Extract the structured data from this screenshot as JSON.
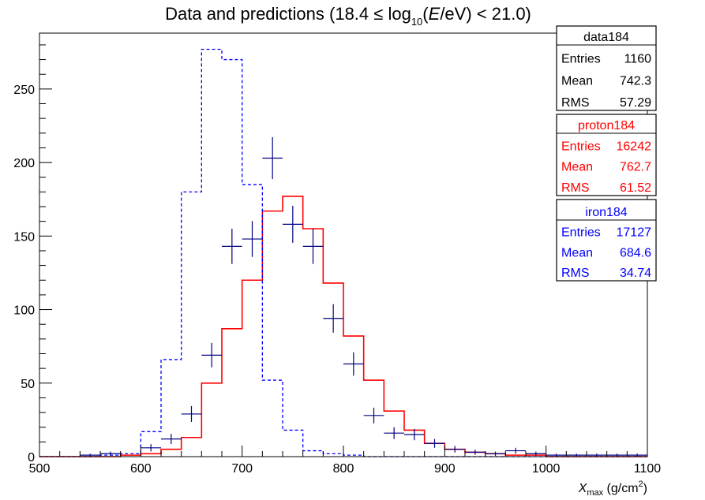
{
  "chart_data": {
    "type": "histogram",
    "title": {
      "prefix": "Data and predictions (18.4 ≤ log",
      "sub": "10",
      "mid": "(",
      "italic": "E",
      "suffix": "/eV) < 21.0)"
    },
    "xlabel": {
      "italic": "X",
      "sub": "max",
      "unit": " (g/cm",
      "sup": "2",
      "close": ")"
    },
    "ylabel": "",
    "xlim": [
      500,
      1100
    ],
    "ylim": [
      0,
      288
    ],
    "x_ticks": [
      500,
      600,
      700,
      800,
      900,
      1000,
      1100
    ],
    "y_ticks": [
      0,
      50,
      100,
      150,
      200,
      250
    ],
    "bin_edges": [
      500,
      520,
      540,
      560,
      580,
      600,
      620,
      640,
      660,
      680,
      700,
      720,
      740,
      760,
      780,
      800,
      820,
      840,
      860,
      880,
      900,
      920,
      940,
      960,
      980,
      1000,
      1020,
      1040,
      1060,
      1080,
      1100
    ],
    "series": [
      {
        "name": "proton184",
        "style": "solid-histogram",
        "color": "#ff0000",
        "values": [
          0,
          0,
          0,
          0,
          1,
          2,
          5,
          13,
          50,
          87,
          120,
          167,
          177,
          155,
          118,
          82,
          52,
          31,
          18,
          9,
          5,
          3,
          2,
          1,
          1,
          0,
          0,
          0,
          0,
          0
        ],
        "stats": {
          "Entries": "16242",
          "Mean": "762.7",
          "RMS": "61.52"
        }
      },
      {
        "name": "iron184",
        "style": "dashed-histogram",
        "color": "#0000ff",
        "values": [
          0,
          0,
          0,
          1,
          2,
          17,
          66,
          180,
          277,
          270,
          185,
          52,
          18,
          4,
          2,
          1,
          0,
          0,
          0,
          0,
          0,
          0,
          0,
          0,
          0,
          0,
          0,
          0,
          0,
          0
        ],
        "stats": {
          "Entries": "17127",
          "Mean": "684.6",
          "RMS": "34.74"
        }
      },
      {
        "name": "data184",
        "style": "points-with-errors",
        "color": "#000080",
        "x": [
          550,
          570,
          610,
          630,
          650,
          670,
          690,
          710,
          730,
          750,
          770,
          790,
          810,
          830,
          850,
          870,
          890,
          910,
          930,
          950,
          970,
          990,
          1010,
          1030,
          1050,
          1070,
          1090
        ],
        "values": [
          1,
          2,
          6,
          12,
          29,
          69,
          143,
          148,
          203,
          158,
          143,
          94,
          63,
          28,
          16,
          15,
          9,
          5,
          3,
          2,
          4,
          2,
          1,
          1,
          1,
          1,
          1
        ],
        "stats": {
          "Entries": "1160",
          "Mean": "742.3",
          "RMS": "57.29"
        }
      }
    ],
    "stat_labels": [
      "Entries",
      "Mean",
      "RMS"
    ],
    "grid": false
  }
}
